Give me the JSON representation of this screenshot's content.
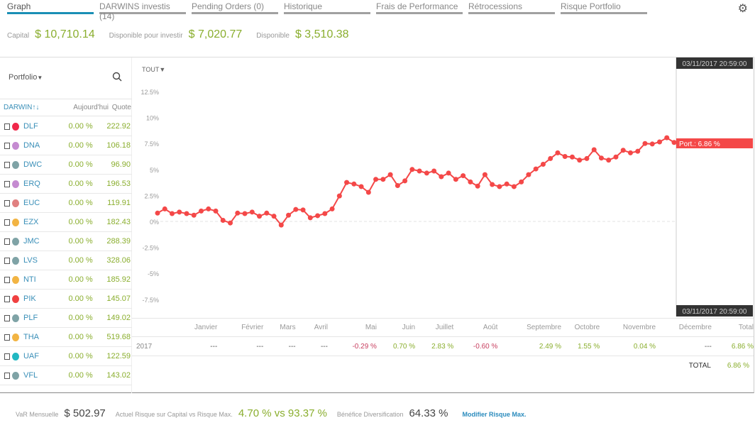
{
  "tabs": [
    "Graph",
    "DARWINS investis (14)",
    "Pending Orders (0)",
    "Historique",
    "Frais de Performance",
    "Rétrocessions",
    "Risque Portfolio"
  ],
  "summary": {
    "capital_label": "Capital",
    "capital": "$ 10,710.14",
    "invest_label": "Disponible pour investir",
    "invest": "$ 7,020.77",
    "dispo_label": "Disponible",
    "dispo": "$ 3,510.38"
  },
  "sidebar": {
    "portfolio": "Portfolio",
    "col_darwin": "DARWIN",
    "col_today": "Aujourd'hui",
    "col_quote": "Quote",
    "rows": [
      {
        "name": "DLF",
        "today": "0.00 %",
        "quote": "222.92",
        "color": "#f0284a"
      },
      {
        "name": "DNA",
        "today": "0.00 %",
        "quote": "106.18",
        "color": "#c58bd1"
      },
      {
        "name": "DWC",
        "today": "0.00 %",
        "quote": "96.90",
        "color": "#7fa3a6"
      },
      {
        "name": "ERQ",
        "today": "0.00 %",
        "quote": "196.53",
        "color": "#c58bd1"
      },
      {
        "name": "EUC",
        "today": "0.00 %",
        "quote": "119.91",
        "color": "#e08080"
      },
      {
        "name": "EZX",
        "today": "0.00 %",
        "quote": "182.43",
        "color": "#f2b443"
      },
      {
        "name": "JMC",
        "today": "0.00 %",
        "quote": "288.39",
        "color": "#7fa3a6"
      },
      {
        "name": "LVS",
        "today": "0.00 %",
        "quote": "328.06",
        "color": "#7fa3a6"
      },
      {
        "name": "NTI",
        "today": "0.00 %",
        "quote": "185.92",
        "color": "#f2b443"
      },
      {
        "name": "PIK",
        "today": "0.00 %",
        "quote": "145.07",
        "color": "#f04040"
      },
      {
        "name": "PLF",
        "today": "0.00 %",
        "quote": "149.02",
        "color": "#7fa3a6"
      },
      {
        "name": "THA",
        "today": "0.00 %",
        "quote": "519.68",
        "color": "#f2b443"
      },
      {
        "name": "UAF",
        "today": "0.00 %",
        "quote": "122.59",
        "color": "#22b8c2"
      },
      {
        "name": "VFL",
        "today": "0.00 %",
        "quote": "143.02",
        "color": "#7fa3a6"
      }
    ]
  },
  "chart_data": {
    "type": "line",
    "range_label": "TOUT",
    "yticks": [
      "12.5%",
      "10%",
      "7.5%",
      "5%",
      "2.5%",
      "0%",
      "-2.5%",
      "-5%",
      "-7.5%"
    ],
    "ylim": [
      -8.5,
      14
    ],
    "date_top": "03/11/2017 20:59:00",
    "date_bottom": "03/11/2017 20:59:00",
    "port_label": "Port.: 6.86 %",
    "color": "#f44848",
    "values": [
      0.8,
      1.2,
      0.75,
      0.9,
      0.75,
      0.6,
      1.0,
      1.2,
      1.0,
      0.1,
      -0.15,
      0.8,
      0.75,
      0.9,
      0.5,
      0.8,
      0.5,
      -0.35,
      0.6,
      1.15,
      1.1,
      0.35,
      0.55,
      0.75,
      1.2,
      2.45,
      3.75,
      3.6,
      3.35,
      2.8,
      4.05,
      4.05,
      4.5,
      3.45,
      3.9,
      5.0,
      4.85,
      4.65,
      4.85,
      4.3,
      4.65,
      4.05,
      4.4,
      3.8,
      3.4,
      4.5,
      3.55,
      3.35,
      3.6,
      3.35,
      3.8,
      4.5,
      5.05,
      5.5,
      6.05,
      6.6,
      6.25,
      6.2,
      5.9,
      6.05,
      6.9,
      6.1,
      5.9,
      6.2,
      6.85,
      6.6,
      6.75,
      7.5,
      7.45,
      7.65,
      8.05,
      7.6
    ]
  },
  "monthly": {
    "headers": [
      "",
      "Janvier",
      "Février",
      "Mars",
      "Avril",
      "Mai",
      "Juin",
      "Juillet",
      "Août",
      "Septembre",
      "Octobre",
      "Novembre",
      "Décembre",
      "Total"
    ],
    "row": [
      "2017",
      "---",
      "---",
      "---",
      "---",
      "-0.29 %",
      "0.70 %",
      "2.83 %",
      "-0.60 %",
      "2.49 %",
      "1.55 %",
      "0.04 %",
      "---",
      "6.86 %"
    ],
    "total_label": "TOTAL",
    "total": "6.86 %"
  },
  "footer": {
    "var_label": "VaR Mensuelle",
    "var": "$ 502.97",
    "risk_label": "Actuel Risque sur Capital vs Risque Max.",
    "risk": "4.70 % vs 93.37 %",
    "div_label": "Bénéfice Diversification",
    "div": "64.33 %",
    "modify": "Modifier Risque Max."
  }
}
